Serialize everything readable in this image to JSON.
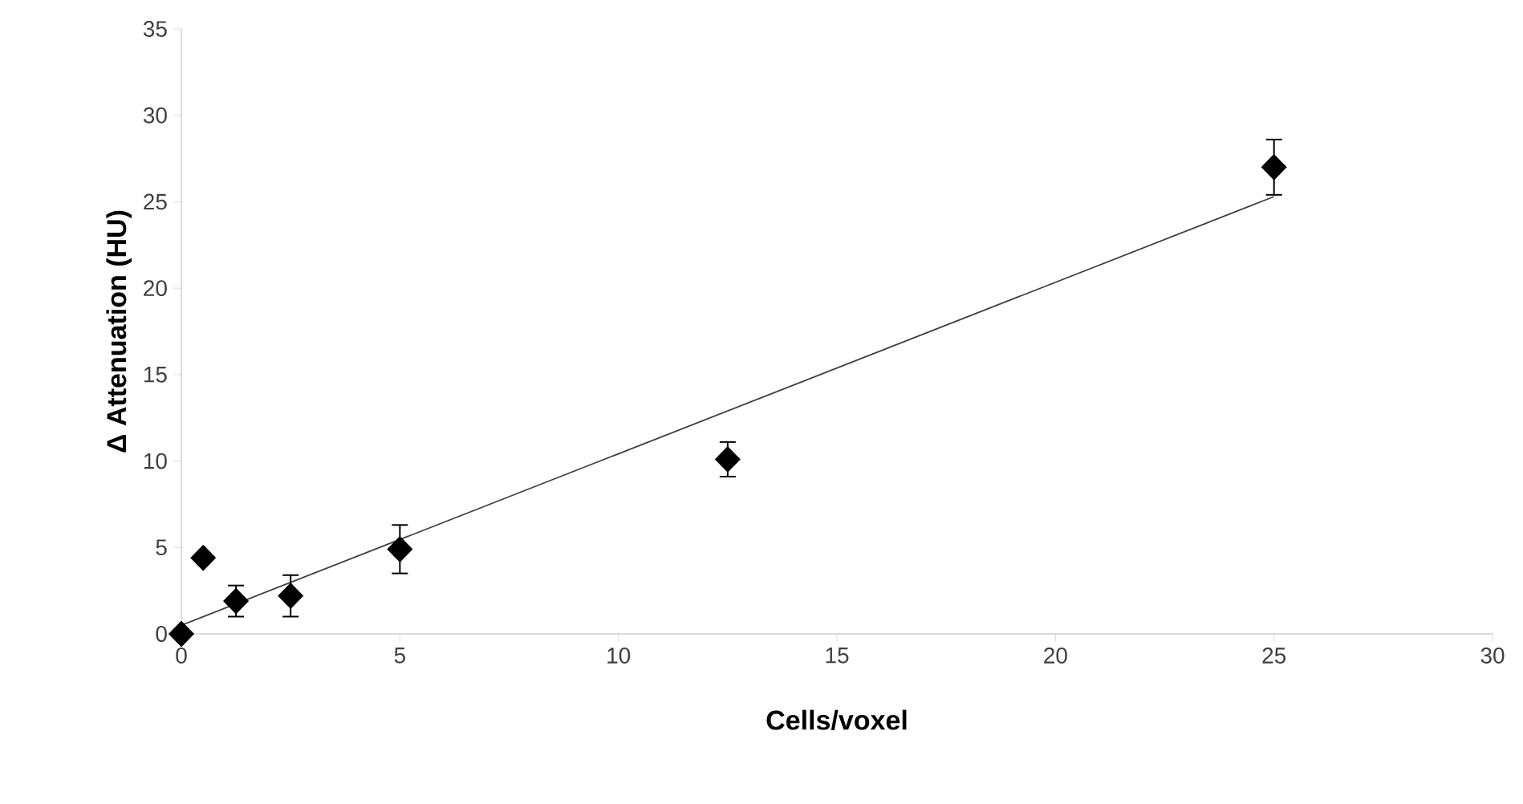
{
  "chart_data": {
    "type": "scatter",
    "xlabel": "Cells/voxel",
    "ylabel": "Δ Attenuation  (HU)",
    "xlim": [
      0,
      30
    ],
    "ylim": [
      0,
      35
    ],
    "xticks": [
      0,
      5,
      10,
      15,
      20,
      25,
      30
    ],
    "yticks": [
      0,
      5,
      10,
      15,
      20,
      25,
      30,
      35
    ],
    "marker": "diamond",
    "series": [
      {
        "type": "line",
        "color": "#404040",
        "x": [
          0,
          25
        ],
        "values": [
          0.5,
          25.3
        ],
        "marker": "none"
      },
      {
        "color": "#000000",
        "x": [
          0,
          0.5,
          1.25,
          2.5,
          5,
          12.5,
          25
        ],
        "values": [
          0,
          4.4,
          1.9,
          2.2,
          4.9,
          10.1,
          27.0
        ],
        "errors": [
          null,
          null,
          0.9,
          1.2,
          1.4,
          1.0,
          1.6
        ]
      }
    ]
  }
}
